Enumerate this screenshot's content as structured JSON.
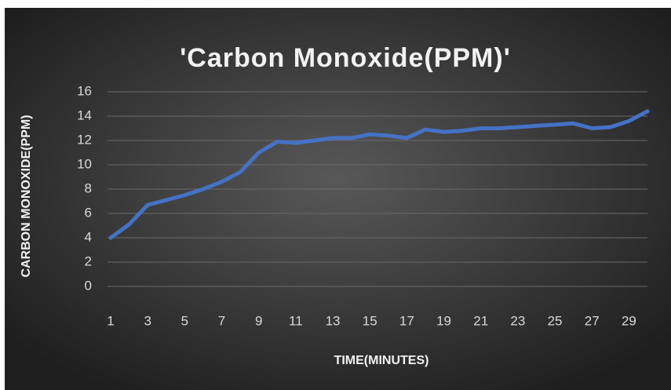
{
  "chart_data": {
    "type": "line",
    "title": "'Carbon Monoxide(PPM)'",
    "x_label": "TIME(MINUTES)",
    "y_label": "CARBON MONOXIDE(PPM)",
    "categories": [
      1,
      null,
      3,
      null,
      5,
      null,
      7,
      null,
      9,
      null,
      11,
      null,
      13,
      null,
      15,
      null,
      17,
      null,
      19,
      null,
      21,
      null,
      23,
      null,
      25,
      null,
      27,
      null,
      29,
      null
    ],
    "values": [
      4.0,
      5.1,
      6.7,
      7.1,
      7.5,
      8.0,
      8.6,
      9.4,
      11.0,
      11.9,
      11.8,
      12.0,
      12.2,
      12.2,
      12.5,
      12.4,
      12.2,
      12.9,
      12.7,
      12.8,
      13.0,
      13.0,
      13.1,
      13.2,
      13.3,
      13.4,
      13.0,
      13.1,
      13.6,
      14.4
    ],
    "color": "#4472c4",
    "ylim": [
      0,
      16
    ],
    "yticks": [
      0,
      2,
      4,
      6,
      8,
      10,
      12,
      14,
      16
    ],
    "grid": true
  }
}
